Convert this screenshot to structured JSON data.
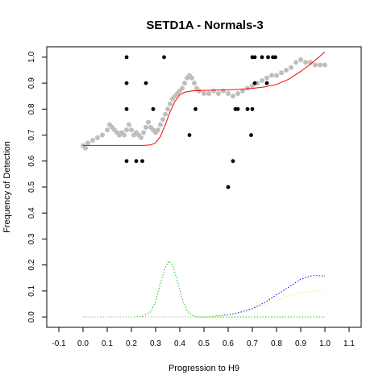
{
  "chart_data": {
    "type": "scatter",
    "title": "SETD1A - Normals-3",
    "xlabel": "Progression to H9",
    "ylabel": "Frequency of Detection",
    "xlim": [
      -0.15,
      1.15
    ],
    "ylim": [
      -0.04,
      1.04
    ],
    "x_ticks": [
      "-0.1",
      "0.0",
      "0.1",
      "0.2",
      "0.3",
      "0.4",
      "0.5",
      "0.6",
      "0.7",
      "0.8",
      "0.9",
      "1.0",
      "1.1"
    ],
    "y_ticks": [
      "0.0",
      "0.1",
      "0.2",
      "0.3",
      "0.4",
      "0.5",
      "0.6",
      "0.7",
      "0.8",
      "0.9",
      "1.0"
    ],
    "grid": false,
    "legend": "none",
    "colors": {
      "observed": "#000000",
      "smoothed": "#bebebe",
      "fit": "#ff0000",
      "green": "#00cc00",
      "blue": "#0000ff",
      "yellow": "#eeee66"
    },
    "series": [
      {
        "style": "black-points",
        "points": [
          [
            0.18,
            1.0
          ],
          [
            0.18,
            0.9
          ],
          [
            0.18,
            0.8
          ],
          [
            0.18,
            0.6
          ],
          [
            0.22,
            0.6
          ],
          [
            0.245,
            0.6
          ],
          [
            0.26,
            0.9
          ],
          [
            0.29,
            0.8
          ],
          [
            0.335,
            1.0
          ],
          [
            0.44,
            0.7
          ],
          [
            0.465,
            0.8
          ],
          [
            0.6,
            0.5
          ],
          [
            0.62,
            0.6
          ],
          [
            0.63,
            0.8
          ],
          [
            0.64,
            0.8
          ],
          [
            0.68,
            0.8
          ],
          [
            0.695,
            0.7
          ],
          [
            0.7,
            0.8
          ],
          [
            0.7,
            1.0
          ],
          [
            0.71,
            1.0
          ],
          [
            0.71,
            0.9
          ],
          [
            0.74,
            1.0
          ],
          [
            0.76,
            0.9
          ],
          [
            0.765,
            1.0
          ],
          [
            0.785,
            1.0
          ],
          [
            0.795,
            1.0
          ]
        ]
      },
      {
        "style": "grey-smoothed-points",
        "points": [
          [
            0.0,
            0.66
          ],
          [
            0.01,
            0.65
          ],
          [
            0.02,
            0.67
          ],
          [
            0.04,
            0.68
          ],
          [
            0.06,
            0.69
          ],
          [
            0.08,
            0.7
          ],
          [
            0.1,
            0.72
          ],
          [
            0.11,
            0.74
          ],
          [
            0.12,
            0.73
          ],
          [
            0.13,
            0.72
          ],
          [
            0.14,
            0.71
          ],
          [
            0.15,
            0.7
          ],
          [
            0.16,
            0.71
          ],
          [
            0.17,
            0.7
          ],
          [
            0.18,
            0.72
          ],
          [
            0.19,
            0.74
          ],
          [
            0.2,
            0.72
          ],
          [
            0.21,
            0.7
          ],
          [
            0.22,
            0.71
          ],
          [
            0.23,
            0.7
          ],
          [
            0.24,
            0.69
          ],
          [
            0.25,
            0.71
          ],
          [
            0.26,
            0.73
          ],
          [
            0.27,
            0.75
          ],
          [
            0.28,
            0.73
          ],
          [
            0.29,
            0.72
          ],
          [
            0.3,
            0.71
          ],
          [
            0.31,
            0.72
          ],
          [
            0.32,
            0.74
          ],
          [
            0.33,
            0.76
          ],
          [
            0.34,
            0.78
          ],
          [
            0.35,
            0.8
          ],
          [
            0.36,
            0.82
          ],
          [
            0.37,
            0.84
          ],
          [
            0.38,
            0.85
          ],
          [
            0.39,
            0.86
          ],
          [
            0.4,
            0.87
          ],
          [
            0.41,
            0.88
          ],
          [
            0.42,
            0.9
          ],
          [
            0.43,
            0.92
          ],
          [
            0.44,
            0.93
          ],
          [
            0.45,
            0.92
          ],
          [
            0.46,
            0.9
          ],
          [
            0.47,
            0.88
          ],
          [
            0.48,
            0.87
          ],
          [
            0.5,
            0.86
          ],
          [
            0.52,
            0.86
          ],
          [
            0.54,
            0.87
          ],
          [
            0.56,
            0.86
          ],
          [
            0.58,
            0.87
          ],
          [
            0.6,
            0.86
          ],
          [
            0.62,
            0.85
          ],
          [
            0.64,
            0.86
          ],
          [
            0.66,
            0.87
          ],
          [
            0.68,
            0.88
          ],
          [
            0.7,
            0.89
          ],
          [
            0.72,
            0.9
          ],
          [
            0.74,
            0.91
          ],
          [
            0.76,
            0.92
          ],
          [
            0.78,
            0.93
          ],
          [
            0.8,
            0.93
          ],
          [
            0.82,
            0.94
          ],
          [
            0.84,
            0.95
          ],
          [
            0.86,
            0.96
          ],
          [
            0.88,
            0.98
          ],
          [
            0.9,
            0.99
          ],
          [
            0.92,
            0.98
          ],
          [
            0.94,
            0.98
          ],
          [
            0.96,
            0.97
          ],
          [
            0.98,
            0.97
          ],
          [
            1.0,
            0.97
          ]
        ]
      },
      {
        "style": "red-fit-line",
        "points": [
          [
            0.0,
            0.66
          ],
          [
            0.05,
            0.66
          ],
          [
            0.1,
            0.66
          ],
          [
            0.15,
            0.66
          ],
          [
            0.2,
            0.66
          ],
          [
            0.25,
            0.66
          ],
          [
            0.28,
            0.662
          ],
          [
            0.3,
            0.67
          ],
          [
            0.32,
            0.695
          ],
          [
            0.34,
            0.74
          ],
          [
            0.36,
            0.79
          ],
          [
            0.38,
            0.83
          ],
          [
            0.4,
            0.855
          ],
          [
            0.42,
            0.865
          ],
          [
            0.45,
            0.87
          ],
          [
            0.5,
            0.872
          ],
          [
            0.55,
            0.873
          ],
          [
            0.6,
            0.874
          ],
          [
            0.65,
            0.876
          ],
          [
            0.7,
            0.88
          ],
          [
            0.75,
            0.885
          ],
          [
            0.8,
            0.895
          ],
          [
            0.85,
            0.915
          ],
          [
            0.9,
            0.945
          ],
          [
            0.95,
            0.98
          ],
          [
            1.0,
            1.02
          ]
        ]
      },
      {
        "style": "green-dotted",
        "points": [
          [
            0.0,
            0.0
          ],
          [
            0.2,
            0.0
          ],
          [
            0.25,
            0.003
          ],
          [
            0.28,
            0.02
          ],
          [
            0.3,
            0.06
          ],
          [
            0.32,
            0.13
          ],
          [
            0.34,
            0.19
          ],
          [
            0.355,
            0.215
          ],
          [
            0.37,
            0.2
          ],
          [
            0.39,
            0.14
          ],
          [
            0.41,
            0.07
          ],
          [
            0.43,
            0.025
          ],
          [
            0.45,
            0.005
          ],
          [
            0.48,
            0.0
          ],
          [
            0.6,
            0.0
          ],
          [
            0.8,
            0.0
          ],
          [
            1.0,
            0.0
          ]
        ]
      },
      {
        "style": "blue-dotted",
        "points": [
          [
            0.0,
            0.0
          ],
          [
            0.5,
            0.0
          ],
          [
            0.55,
            0.003
          ],
          [
            0.6,
            0.008
          ],
          [
            0.65,
            0.018
          ],
          [
            0.7,
            0.032
          ],
          [
            0.75,
            0.055
          ],
          [
            0.8,
            0.085
          ],
          [
            0.85,
            0.115
          ],
          [
            0.9,
            0.145
          ],
          [
            0.95,
            0.16
          ],
          [
            1.0,
            0.158
          ]
        ]
      },
      {
        "style": "yellow-dotted",
        "points": [
          [
            0.0,
            0.0
          ],
          [
            0.5,
            0.0
          ],
          [
            0.55,
            0.002
          ],
          [
            0.6,
            0.006
          ],
          [
            0.65,
            0.015
          ],
          [
            0.7,
            0.028
          ],
          [
            0.75,
            0.045
          ],
          [
            0.8,
            0.063
          ],
          [
            0.85,
            0.08
          ],
          [
            0.9,
            0.093
          ],
          [
            0.95,
            0.1
          ],
          [
            1.0,
            0.1
          ]
        ]
      }
    ]
  }
}
